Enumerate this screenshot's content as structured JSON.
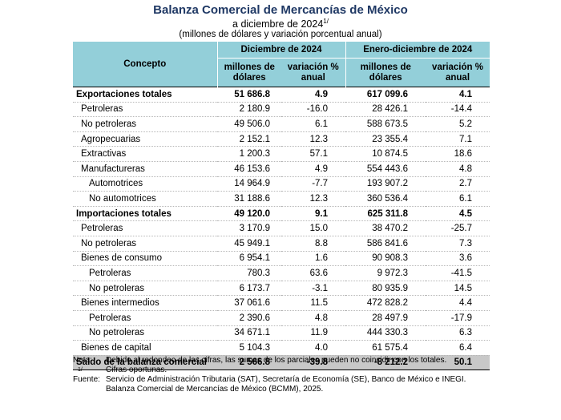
{
  "header": {
    "title": "Balanza Comercial de Mercancías de México",
    "subtitle": "a diciembre de 2024",
    "subtitle_sup": "1/",
    "units": "(millones de dólares y variación porcentual anual)"
  },
  "table": {
    "concept_header": "Concepto",
    "group1": "Diciembre de 2024",
    "group2": "Enero-diciembre de 2024",
    "col_millones": "millones de dólares",
    "col_variacion": "variación % anual",
    "rows": [
      {
        "label": "Exportaciones totales",
        "dic_mill": "51 686.8",
        "dic_var": "4.9",
        "ene_mill": "617 099.6",
        "ene_var": "4.1"
      },
      {
        "label": "Petroleras",
        "dic_mill": "2 180.9",
        "dic_var": "-16.0",
        "ene_mill": "28 426.1",
        "ene_var": "-14.4"
      },
      {
        "label": "No petroleras",
        "dic_mill": "49 506.0",
        "dic_var": "6.1",
        "ene_mill": "588 673.5",
        "ene_var": "5.2"
      },
      {
        "label": "Agropecuarias",
        "dic_mill": "2 152.1",
        "dic_var": "12.3",
        "ene_mill": "23 355.4",
        "ene_var": "7.1"
      },
      {
        "label": "Extractivas",
        "dic_mill": "1 200.3",
        "dic_var": "57.1",
        "ene_mill": "10 874.5",
        "ene_var": "18.6"
      },
      {
        "label": "Manufactureras",
        "dic_mill": "46 153.6",
        "dic_var": "4.9",
        "ene_mill": "554 443.6",
        "ene_var": "4.8"
      },
      {
        "label": "Automotrices",
        "dic_mill": "14 964.9",
        "dic_var": "-7.7",
        "ene_mill": "193 907.2",
        "ene_var": "2.7"
      },
      {
        "label": "No automotrices",
        "dic_mill": "31 188.6",
        "dic_var": "12.3",
        "ene_mill": "360 536.4",
        "ene_var": "6.1"
      },
      {
        "label": "Importaciones totales",
        "dic_mill": "49 120.0",
        "dic_var": "9.1",
        "ene_mill": "625 311.8",
        "ene_var": "4.5"
      },
      {
        "label": "Petroleras",
        "dic_mill": "3 170.9",
        "dic_var": "15.0",
        "ene_mill": "38 470.2",
        "ene_var": "-25.7"
      },
      {
        "label": "No petroleras",
        "dic_mill": "45 949.1",
        "dic_var": "8.8",
        "ene_mill": "586 841.6",
        "ene_var": "7.3"
      },
      {
        "label": "Bienes de consumo",
        "dic_mill": "6 954.1",
        "dic_var": "1.6",
        "ene_mill": "90 908.3",
        "ene_var": "3.6"
      },
      {
        "label": "Petroleras",
        "dic_mill": "780.3",
        "dic_var": "63.6",
        "ene_mill": "9 972.3",
        "ene_var": "-41.5"
      },
      {
        "label": "No petroleras",
        "dic_mill": "6 173.7",
        "dic_var": "-3.1",
        "ene_mill": "80 935.9",
        "ene_var": "14.5"
      },
      {
        "label": "Bienes intermedios",
        "dic_mill": "37 061.6",
        "dic_var": "11.5",
        "ene_mill": "472 828.2",
        "ene_var": "4.4"
      },
      {
        "label": "Petroleras",
        "dic_mill": "2 390.6",
        "dic_var": "4.8",
        "ene_mill": "28 497.9",
        "ene_var": "-17.9"
      },
      {
        "label": "No petroleras",
        "dic_mill": "34 671.1",
        "dic_var": "11.9",
        "ene_mill": "444 330.3",
        "ene_var": "6.3"
      },
      {
        "label": "Bienes de capital",
        "dic_mill": "5 104.3",
        "dic_var": "4.0",
        "ene_mill": "61 575.4",
        "ene_var": "6.4"
      },
      {
        "label": "Saldo de la balanza comercial",
        "dic_mill": "2 566.8",
        "dic_var": "-39.8",
        "ene_mill": "-8 212.2",
        "ene_var": "50.1"
      }
    ]
  },
  "notes": {
    "nota_key": "Nota:",
    "nota_text": "Debido al redondeo de las cifras, las sumas de los parciales pueden no coincidir con los totales.",
    "sup_key": "1/",
    "sup_text": "Cifras oportunas.",
    "fuente_key": "Fuente:",
    "fuente_text": "Servicio de Administración Tributaria (SAT), Secretaría de Economía (SE), Banco de México e INEGI.",
    "fuente_text2": "Balanza Comercial de Mercancías de México (BCMM), 2025."
  }
}
